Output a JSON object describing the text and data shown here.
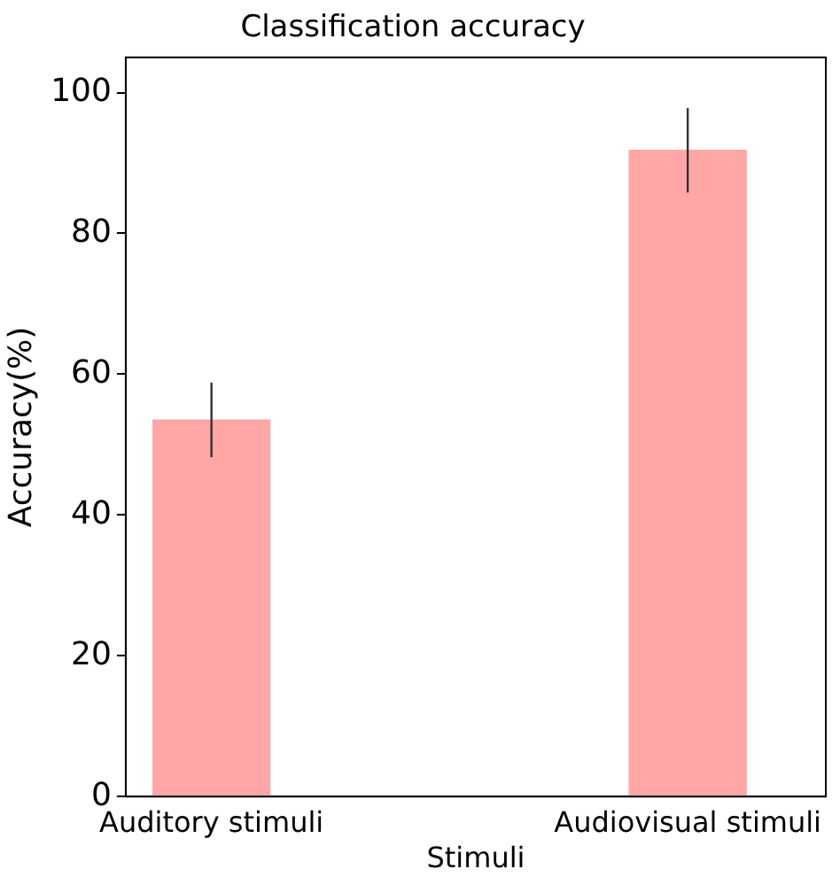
{
  "chart_data": {
    "type": "bar",
    "title": "Classification accuracy",
    "xlabel": "Stimuli",
    "ylabel": "Accuracy(%)",
    "categories": [
      "Auditory stimuli",
      "Audiovisual stimuli"
    ],
    "values": [
      53.5,
      91.8
    ],
    "errors": [
      5.3,
      6
    ],
    "color": "#ffa6a6",
    "ylim": [
      0,
      105
    ],
    "yticks": [
      0,
      20,
      40,
      60,
      80,
      100
    ],
    "grid": false,
    "legend": false
  }
}
